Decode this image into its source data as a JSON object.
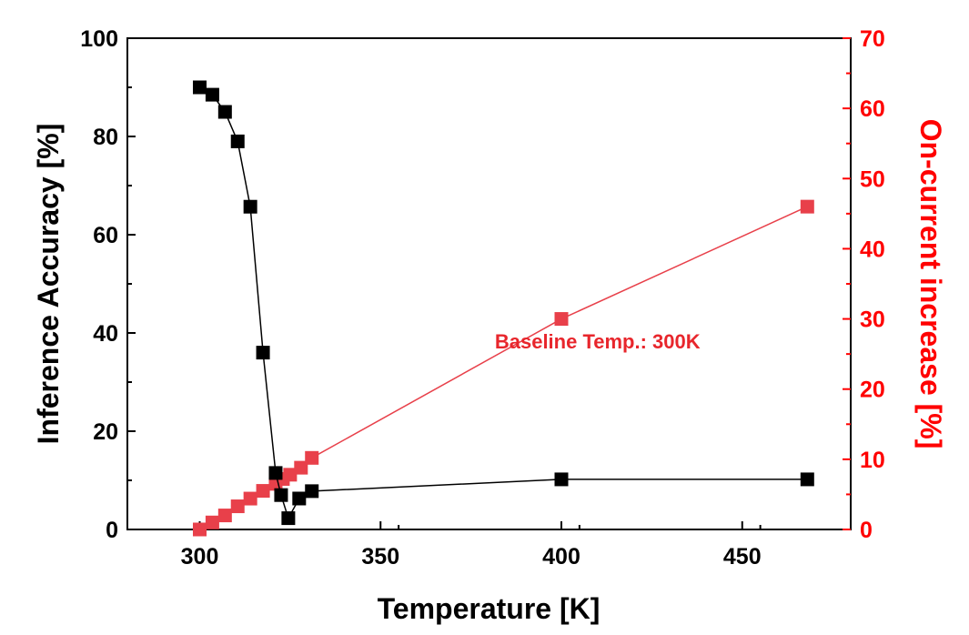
{
  "chart_data": {
    "type": "scatter",
    "xlabel": "Temperature [K]",
    "ylabel_left": "Inference Accuracy [%]",
    "ylabel_right": "On-current increase [%]",
    "xlim": [
      280,
      480
    ],
    "ylim_left": [
      0,
      100
    ],
    "ylim_right": [
      0,
      70
    ],
    "x_ticks": [
      300,
      350,
      400,
      450
    ],
    "y_ticks_left": [
      0,
      20,
      40,
      60,
      80,
      100
    ],
    "y_ticks_right": [
      0,
      10,
      20,
      30,
      40,
      50,
      60,
      70
    ],
    "grid": false,
    "colors": {
      "left_series": "#000000",
      "right_series": "#e8404a",
      "right_axis": "#ff0000",
      "annotation": "#e8262c"
    },
    "annotation": {
      "text": "Baseline Temp.: 300K",
      "x": 410,
      "y_right": 25.8
    },
    "series": [
      {
        "axis": "left",
        "x": [
          300,
          303.5,
          307,
          310.5,
          314,
          317.5,
          321,
          322.5,
          324.5,
          327.5,
          331,
          400,
          468
        ],
        "y": [
          90,
          88.5,
          85,
          79,
          65.7,
          36,
          11.5,
          7,
          2.3,
          6.3,
          7.8,
          10.2,
          10.2
        ]
      },
      {
        "axis": "right",
        "x": [
          300,
          303.5,
          307,
          310.5,
          314,
          317.5,
          321,
          323,
          325,
          328,
          331,
          400,
          468
        ],
        "y": [
          0,
          1,
          2,
          3.3,
          4.4,
          5.5,
          6.5,
          7.2,
          7.8,
          8.8,
          10.2,
          30,
          46
        ]
      }
    ]
  }
}
